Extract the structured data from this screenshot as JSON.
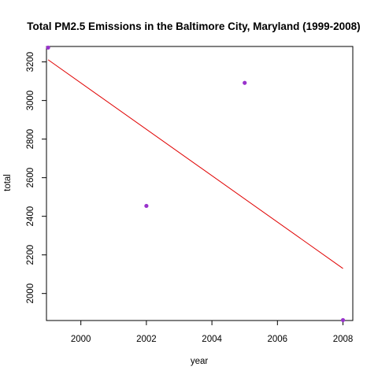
{
  "chart_data": {
    "type": "scatter",
    "title": "Total PM2.5 Emissions in the Baltimore City, Maryland (1999-2008)",
    "xlabel": "year",
    "ylabel": "total",
    "xlim": [
      1998.95,
      2008.3
    ],
    "ylim": [
      1860,
      3280
    ],
    "x_ticks": [
      2000,
      2002,
      2004,
      2006,
      2008
    ],
    "y_ticks": [
      2000,
      2200,
      2400,
      2600,
      2800,
      3000,
      3200
    ],
    "grid": false,
    "legend": "none",
    "series": [
      {
        "kind": "points",
        "color": "#9932CC",
        "points": [
          {
            "x": 1999,
            "y": 3274.2
          },
          {
            "x": 2002,
            "y": 2453.9
          },
          {
            "x": 2005,
            "y": 3091.4
          },
          {
            "x": 2008,
            "y": 1862.3
          }
        ]
      },
      {
        "kind": "fit-line",
        "color": "#E00000",
        "points": [
          {
            "x": 1999,
            "y": 3211.2
          },
          {
            "x": 2008,
            "y": 2129.7
          }
        ]
      }
    ]
  }
}
